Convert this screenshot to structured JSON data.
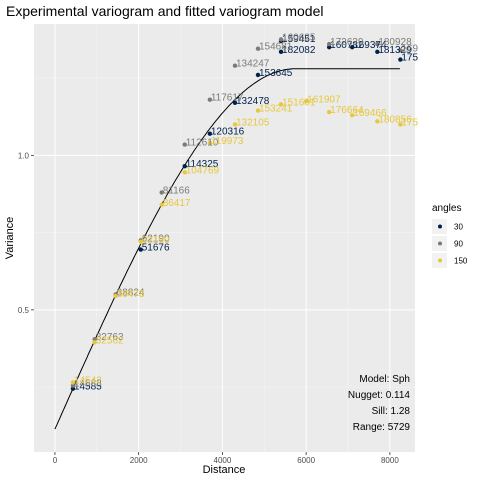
{
  "chart_data": {
    "type": "scatter",
    "title": "Experimental variogram and fitted variogram model",
    "xlabel": "Distance",
    "ylabel": "Variance",
    "xlim": [
      -500,
      8600
    ],
    "ylim": [
      0.04,
      1.425
    ],
    "x_ticks": [
      0,
      2000,
      4000,
      6000,
      8000
    ],
    "y_ticks": [
      0.5,
      1.0
    ],
    "y_tick_labels": [
      "0.5",
      "1.0"
    ],
    "grid": true,
    "legend": {
      "title": "angles",
      "placement": "right",
      "entries": [
        {
          "label": "30",
          "color": "#00204d"
        },
        {
          "label": "90",
          "color": "#7c7b78"
        },
        {
          "label": "150",
          "color": "#e6c83c"
        }
      ]
    },
    "model": {
      "type": "Sph",
      "nugget": 0.114,
      "sill": 1.28,
      "range": 5729
    },
    "annotations": [
      "Model: Sph",
      "Nugget: 0.114",
      "Sill: 1.28",
      "Range: 5729"
    ],
    "series": [
      {
        "name": "30",
        "color": "#00204d",
        "points": [
          {
            "x": 430,
            "y": 0.245,
            "label": "14585"
          },
          {
            "x": 2050,
            "y": 0.695,
            "label": "51676"
          },
          {
            "x": 3100,
            "y": 0.965,
            "label": "114325"
          },
          {
            "x": 3700,
            "y": 1.07,
            "label": "120316"
          },
          {
            "x": 4300,
            "y": 1.17,
            "label": "132478"
          },
          {
            "x": 4850,
            "y": 1.26,
            "label": "153645"
          },
          {
            "x": 5400,
            "y": 1.335,
            "label": "182082"
          },
          {
            "x": 5400,
            "y": 1.37,
            "label": "159451"
          },
          {
            "x": 6550,
            "y": 1.35,
            "label": "160782"
          },
          {
            "x": 7100,
            "y": 1.35,
            "label": "169374"
          },
          {
            "x": 7700,
            "y": 1.335,
            "label": "181329"
          },
          {
            "x": 8250,
            "y": 1.31,
            "label": "175"
          }
        ]
      },
      {
        "name": "90",
        "color": "#7c7b78",
        "points": [
          {
            "x": 430,
            "y": 0.255,
            "label": "14583"
          },
          {
            "x": 950,
            "y": 0.405,
            "label": "32763"
          },
          {
            "x": 1450,
            "y": 0.55,
            "label": "38824"
          },
          {
            "x": 2050,
            "y": 0.725,
            "label": "62190"
          },
          {
            "x": 2550,
            "y": 0.88,
            "label": "81166"
          },
          {
            "x": 3100,
            "y": 1.035,
            "label": "112610"
          },
          {
            "x": 3700,
            "y": 1.18,
            "label": "117617"
          },
          {
            "x": 4300,
            "y": 1.29,
            "label": "134247"
          },
          {
            "x": 4850,
            "y": 1.345,
            "label": "154681"
          },
          {
            "x": 5400,
            "y": 1.375,
            "label": "160625"
          },
          {
            "x": 6550,
            "y": 1.36,
            "label": "172639"
          },
          {
            "x": 7700,
            "y": 1.36,
            "label": "180928"
          },
          {
            "x": 8250,
            "y": 1.34,
            "label": "169"
          }
        ]
      },
      {
        "name": "150",
        "color": "#e6c83c",
        "points": [
          {
            "x": 430,
            "y": 0.265,
            "label": "14542"
          },
          {
            "x": 950,
            "y": 0.395,
            "label": "32562"
          },
          {
            "x": 1450,
            "y": 0.545,
            "label": "38473"
          },
          {
            "x": 2050,
            "y": 0.72,
            "label": "62190"
          },
          {
            "x": 2550,
            "y": 0.84,
            "label": "86417"
          },
          {
            "x": 3100,
            "y": 0.945,
            "label": "104769"
          },
          {
            "x": 3700,
            "y": 1.04,
            "label": "119973"
          },
          {
            "x": 4300,
            "y": 1.1,
            "label": "132105"
          },
          {
            "x": 4850,
            "y": 1.145,
            "label": "153241"
          },
          {
            "x": 5400,
            "y": 1.165,
            "label": "151601"
          },
          {
            "x": 6000,
            "y": 1.175,
            "label": "161907"
          },
          {
            "x": 6550,
            "y": 1.14,
            "label": "176664"
          },
          {
            "x": 7100,
            "y": 1.13,
            "label": "169466"
          },
          {
            "x": 7700,
            "y": 1.11,
            "label": "180856"
          },
          {
            "x": 8250,
            "y": 1.1,
            "label": "175"
          }
        ]
      }
    ]
  }
}
